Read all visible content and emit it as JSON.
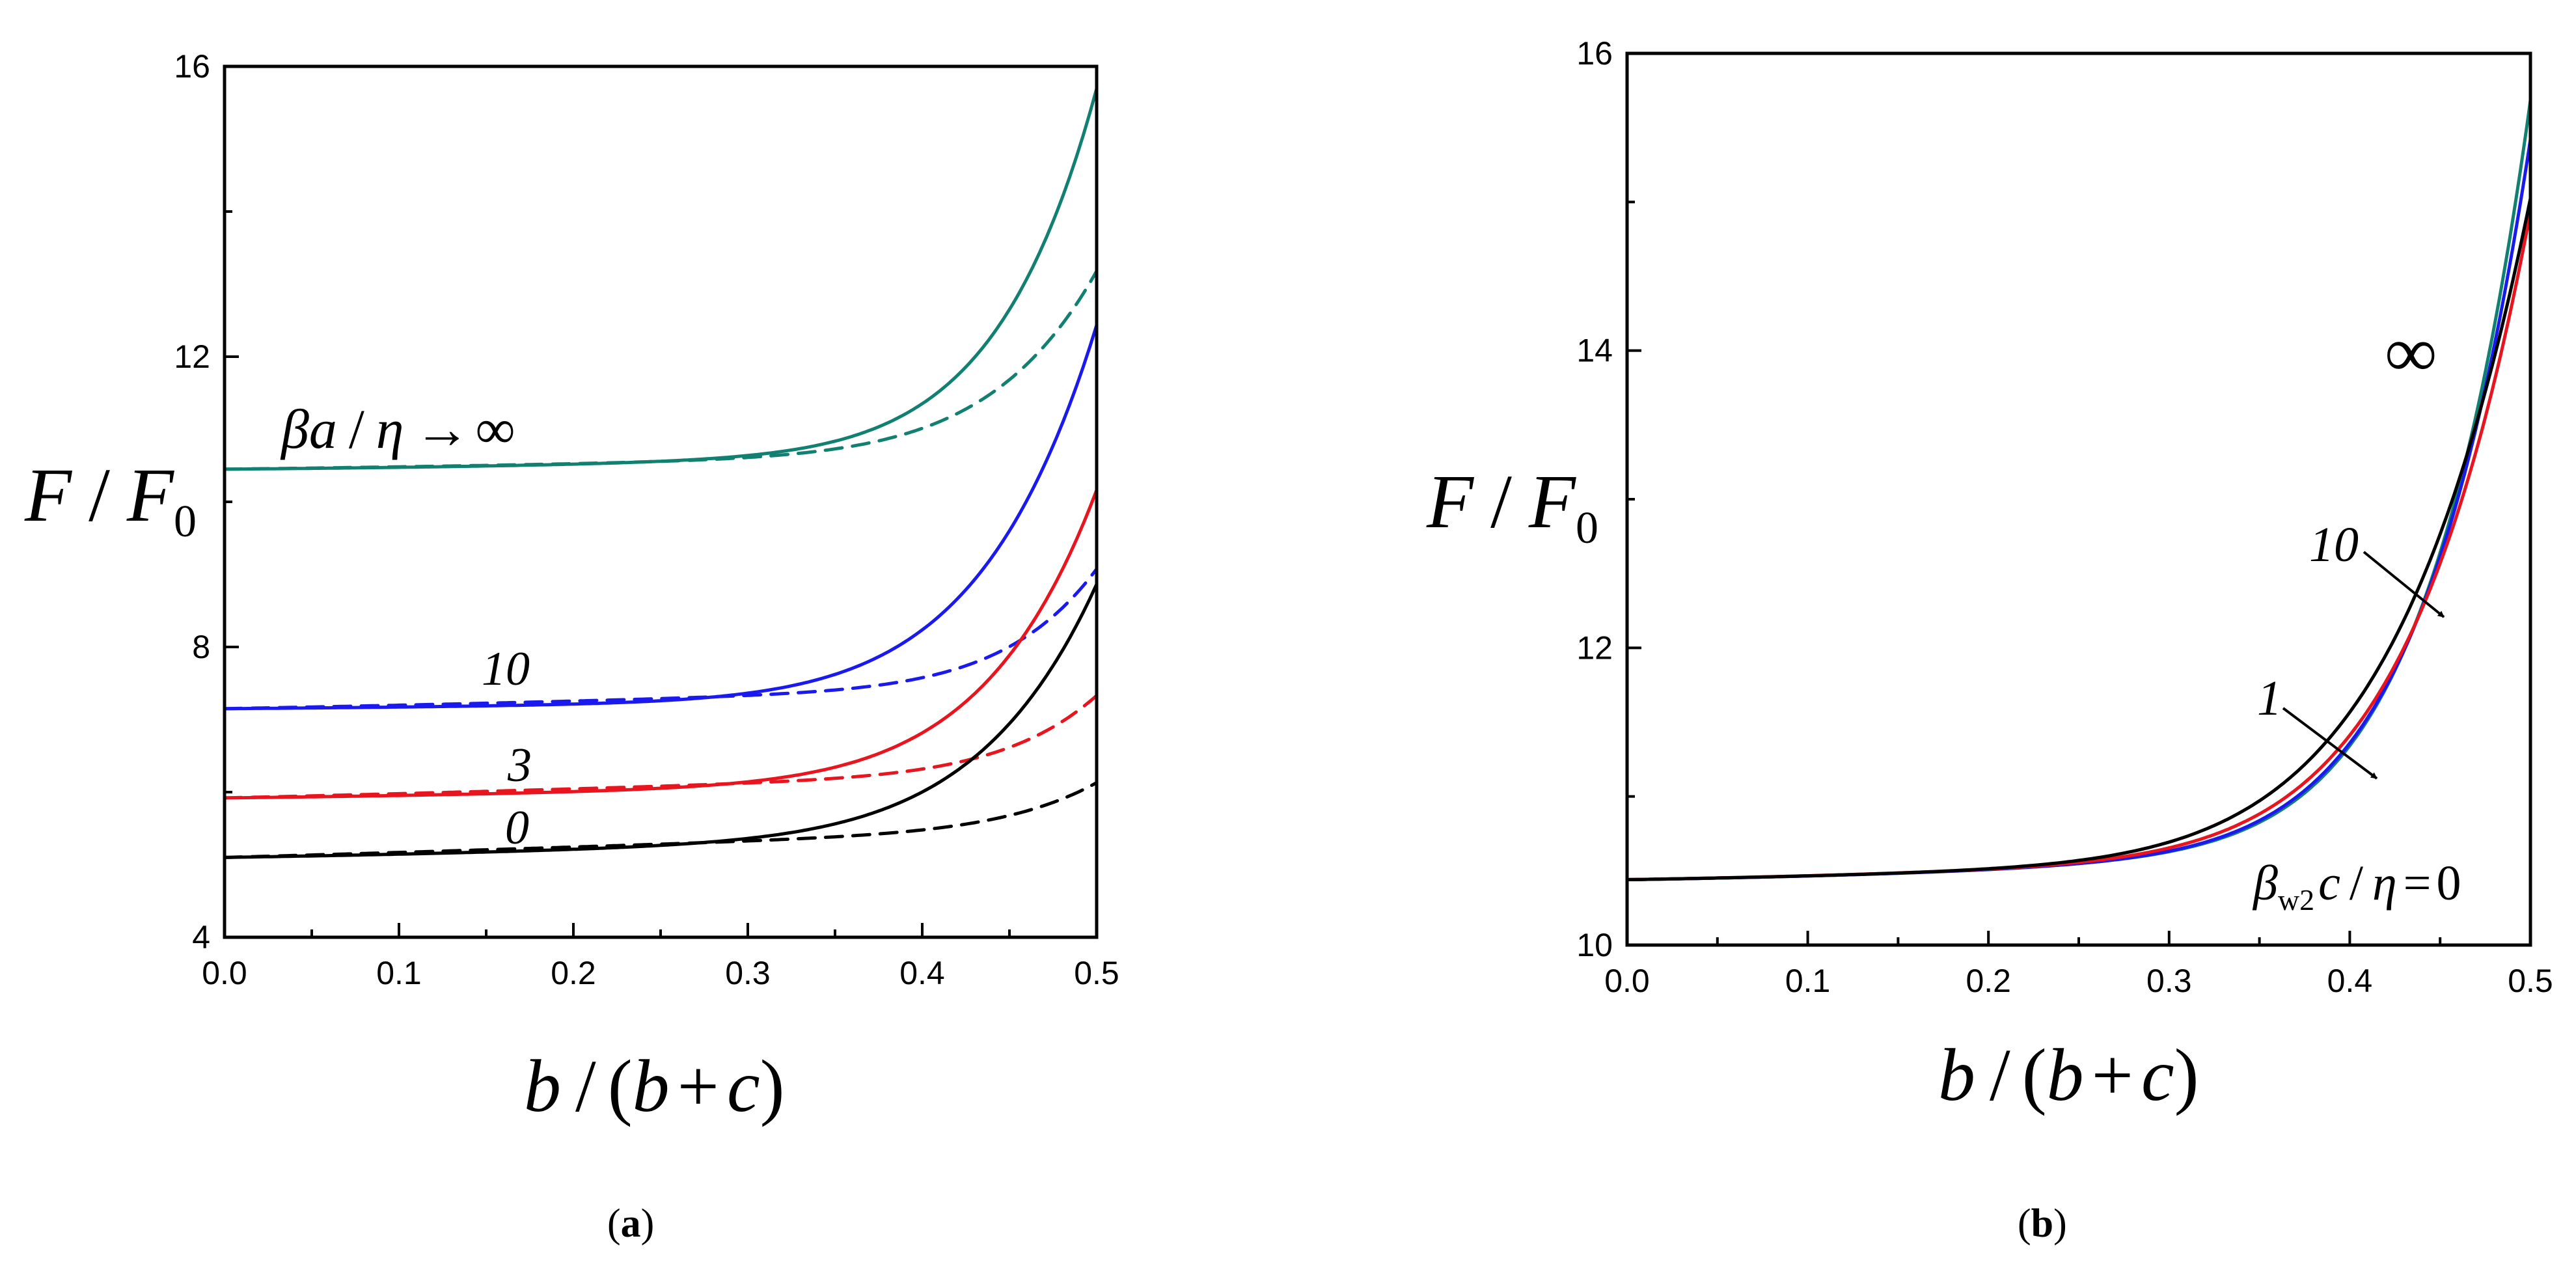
{
  "chart_data": [
    {
      "id": "a",
      "type": "line",
      "caption_open": "(",
      "caption_letter": "a",
      "caption_close": ")",
      "ylabel": "F / F0",
      "xlabel": "b / (b + c)",
      "xlim": [
        0,
        0.5
      ],
      "ylim": [
        4,
        16
      ],
      "xticks": [
        "0.0",
        "0.1",
        "0.2",
        "0.3",
        "0.4",
        "0.5"
      ],
      "yticks": [
        "4",
        "8",
        "12",
        "16"
      ],
      "yminor": [
        6,
        10,
        14
      ],
      "series": [
        {
          "name": "βa/η → ∞ solid",
          "color": "#128070",
          "dash": false,
          "y0": 10.45,
          "k": 5.3,
          "A": 1.9,
          "r": 4.1
        },
        {
          "name": "βa/η → ∞ dashed",
          "color": "#128070",
          "dash": true,
          "y0": 10.45,
          "k": 2.7,
          "A": 1.2,
          "r": 3.9
        },
        {
          "name": "10 solid",
          "color": "#1a1aee",
          "dash": false,
          "y0": 7.15,
          "k": 5.4,
          "A": 1.7,
          "r": 3.55
        },
        {
          "name": "10 dashed",
          "color": "#1a1aee",
          "dash": true,
          "y0": 7.15,
          "k": 1.75,
          "A": 1.4,
          "r": 4.5
        },
        {
          "name": "3 solid",
          "color": "#e8141e",
          "dash": false,
          "y0": 5.92,
          "k": 4.2,
          "A": 1.85,
          "r": 3.7
        },
        {
          "name": "3 dashed",
          "color": "#e8141e",
          "dash": true,
          "y0": 5.92,
          "k": 1.15,
          "A": 1.5,
          "r": 4.45
        },
        {
          "name": "0 solid",
          "color": "#000000",
          "dash": false,
          "y0": 5.1,
          "k": 3.6,
          "A": 2.1,
          "r": 3.55
        },
        {
          "name": "0 dashed",
          "color": "#000000",
          "dash": true,
          "y0": 5.1,
          "k": 0.7,
          "A": 1.6,
          "r": 4.45
        }
      ],
      "labels": {
        "inf": {
          "beta": "β",
          "a": "a",
          "slash": "/",
          "eta": "η",
          "arrow": "→",
          "infinity": "∞"
        },
        "ten": "10",
        "three": "3",
        "zero": "0"
      }
    },
    {
      "id": "b",
      "type": "line",
      "caption_open": "(",
      "caption_letter": "b",
      "caption_close": ")",
      "ylabel": "F / F0",
      "xlabel": "b / (b + c)",
      "xlim": [
        0,
        0.5
      ],
      "ylim": [
        10,
        16
      ],
      "xticks": [
        "0.0",
        "0.1",
        "0.2",
        "0.3",
        "0.4",
        "0.5"
      ],
      "yticks": [
        "10",
        "12",
        "14",
        "16"
      ],
      "yminor": [
        11,
        13,
        15
      ],
      "series": [
        {
          "name": "∞",
          "color": "#128070",
          "dash": false,
          "y0": 10.44,
          "k": 5.3,
          "A": 1.9,
          "r": 4.1
        },
        {
          "name": "10",
          "color": "#1a1aee",
          "dash": false,
          "y0": 10.44,
          "k": 5.05,
          "A": 1.75,
          "r": 3.9
        },
        {
          "name": "1",
          "color": "#e8141e",
          "dash": false,
          "y0": 10.44,
          "k": 4.55,
          "A": 1.6,
          "r": 3.5
        },
        {
          "name": "βw2c/η = 0",
          "color": "#000000",
          "dash": false,
          "y0": 10.44,
          "k": 4.65,
          "A": 1.6,
          "r": 3.15
        }
      ],
      "labels": {
        "inf": "∞",
        "ten": "10",
        "one": "1",
        "zero": {
          "beta": "β",
          "sub": "w2",
          "c": "c",
          "slash": "/",
          "eta": "η",
          "eq": "=",
          "zero": "0"
        }
      }
    }
  ],
  "axis_text": {
    "F": "F",
    "slash": "/",
    "F0": "F",
    "F0sub": "0",
    "b": "b",
    "open": "(",
    "b2": "b",
    "plus": "+",
    "c": "c",
    "close": ")"
  }
}
